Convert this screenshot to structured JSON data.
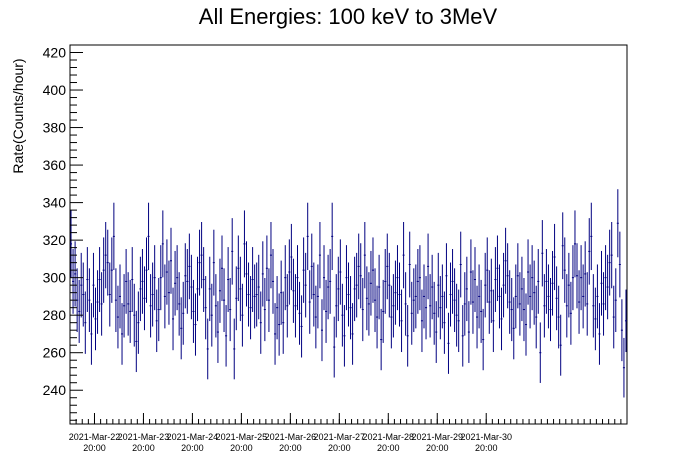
{
  "chart_data": {
    "type": "scatter",
    "title": "All Energies:  100 keV to 3MeV",
    "xlabel": "",
    "ylabel": "Rate(Counts/hour)",
    "ylim": [
      222,
      424
    ],
    "yticks": [
      240,
      260,
      280,
      300,
      320,
      340,
      360,
      380,
      400,
      420
    ],
    "xticks": [
      {
        "date": "2021-Mar-22",
        "time": "20:00"
      },
      {
        "date": "2021-Mar-23",
        "time": "20:00"
      },
      {
        "date": "2021-Mar-24",
        "time": "20:00"
      },
      {
        "date": "2021-Mar-25",
        "time": "20:00"
      },
      {
        "date": "2021-Mar-26",
        "time": "20:00"
      },
      {
        "date": "2021-Mar-27",
        "time": "20:00"
      },
      {
        "date": "2021-Mar-28",
        "time": "20:00"
      },
      {
        "date": "2021-Mar-29",
        "time": "20:00"
      },
      {
        "date": "2021-Mar-30",
        "time": "20:00"
      }
    ],
    "marker_color": "#000080",
    "error_bar": "sqrt(N) per hour",
    "grid": false,
    "series": [
      {
        "values": [
          318,
          298,
          302,
          288,
          282,
          296,
          291,
          276,
          299,
          288,
          270,
          296,
          278,
          287,
          299,
          286,
          304,
          312,
          308,
          291,
          304,
          322,
          288,
          279,
          290,
          270,
          285,
          298,
          286,
          282,
          299,
          280,
          266,
          276,
          294,
          298,
          289,
          304,
          322,
          285,
          291,
          300,
          277,
          283,
          300,
          318,
          290,
          303,
          292,
          309,
          278,
          297,
          300,
          286,
          273,
          281,
          301,
          298,
          306,
          295,
          282,
          275,
          294,
          308,
          312,
          299,
          284,
          262,
          294,
          280,
          308,
          285,
          271,
          293,
          305,
          288,
          269,
          299,
          283,
          314,
          262,
          289,
          305,
          294,
          280,
          318,
          302,
          291,
          284,
          299,
          290,
          291,
          295,
          276,
          302,
          283,
          305,
          288,
          312,
          298,
          270,
          284,
          275,
          292,
          276,
          300,
          285,
          303,
          311,
          293,
          285,
          300,
          281,
          274,
          304,
          296,
          322,
          287,
          306,
          291,
          279,
          290,
          312,
          272,
          300,
          282,
          295,
          298,
          322,
          263,
          285,
          294,
          303,
          280,
          269,
          300,
          291,
          284,
          270,
          294,
          296,
          306,
          301,
          283,
          312,
          289,
          286,
          297,
          304,
          288,
          279,
          295,
          267,
          282,
          298,
          306,
          296,
          279,
          285,
          292,
          300,
          291,
          277,
          312,
          286,
          269,
          307,
          281,
          288,
          290,
          298,
          300,
          277,
          290,
          284,
          306,
          285,
          295,
          281,
          271,
          296,
          284,
          290,
          276,
          301,
          265,
          291,
          298,
          288,
          280,
          277,
          307,
          269,
          286,
          294,
          271,
          303,
          287,
          299,
          279,
          290,
          282,
          267,
          296,
          304,
          287,
          293,
          277,
          299,
          305,
          290,
          278,
          296,
          309,
          301,
          287,
          283,
          273,
          290,
          301,
          286,
          294,
          283,
          275,
          303,
          290,
          300,
          292,
          279,
          298,
          260,
          313,
          285,
          298,
          290,
          283,
          297,
          311,
          289,
          279,
          264,
          317,
          304,
          285,
          296,
          281,
          300,
          318,
          301,
          287,
          300,
          290,
          302,
          286,
          314,
          322,
          285,
          278,
          290,
          270,
          297,
          286,
          300,
          295,
          308,
          312,
          279,
          288,
          329,
          307,
          272,
          252,
          277
        ]
      }
    ]
  }
}
